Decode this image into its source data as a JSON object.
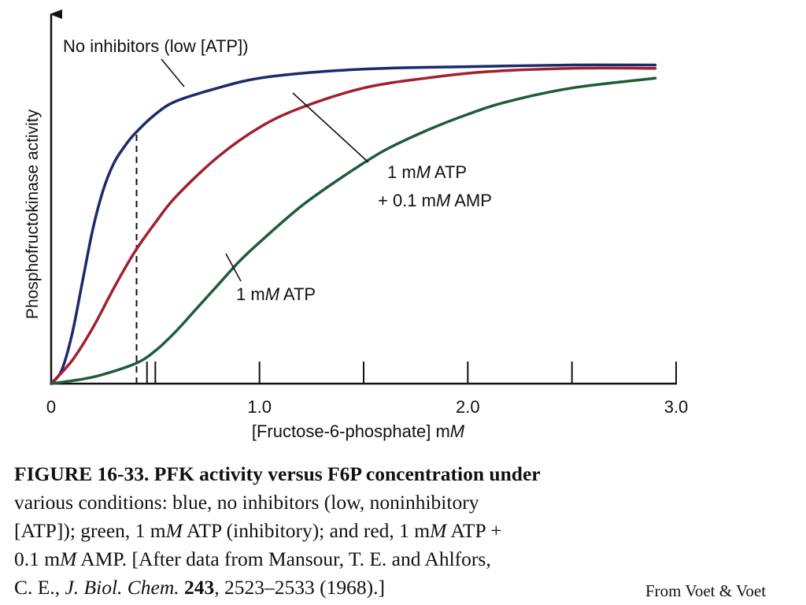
{
  "chart_data": {
    "type": "line",
    "xlabel": "[Fructose-6-phosphate] mM",
    "ylabel": "Phosphofructokinase activity",
    "xlim": [
      0,
      3.0
    ],
    "ylim": [
      0,
      1.0
    ],
    "x_tick_labels": [
      "0",
      "1.0",
      "2.0",
      "3.0"
    ],
    "x_major_ticks": [
      0.5,
      1.0,
      1.5,
      2.0,
      2.5,
      3.0
    ],
    "extra_tick": 0.46,
    "marker_line_x": 0.41,
    "series": [
      {
        "name": "No inhibitors (low [ATP])",
        "color": "#1b2a6b",
        "x": [
          0,
          0.05,
          0.1,
          0.15,
          0.2,
          0.25,
          0.3,
          0.35,
          0.4,
          0.5,
          0.6,
          0.8,
          1.0,
          1.3,
          1.6,
          2.0,
          2.5,
          2.9
        ],
        "y": [
          0.0,
          0.04,
          0.15,
          0.31,
          0.47,
          0.59,
          0.67,
          0.72,
          0.76,
          0.82,
          0.86,
          0.9,
          0.93,
          0.95,
          0.96,
          0.965,
          0.97,
          0.97
        ]
      },
      {
        "name": "1 mM ATP + 0.1 mM AMP",
        "color": "#a02030",
        "x": [
          0,
          0.1,
          0.2,
          0.3,
          0.4,
          0.5,
          0.6,
          0.8,
          1.0,
          1.2,
          1.5,
          1.8,
          2.1,
          2.5,
          2.9
        ],
        "y": [
          0.0,
          0.07,
          0.17,
          0.29,
          0.4,
          0.49,
          0.57,
          0.69,
          0.78,
          0.84,
          0.9,
          0.93,
          0.95,
          0.96,
          0.96
        ]
      },
      {
        "name": "1 mM ATP",
        "color": "#1f5c3a",
        "x": [
          0,
          0.2,
          0.4,
          0.5,
          0.6,
          0.7,
          0.8,
          0.9,
          1.0,
          1.2,
          1.4,
          1.6,
          1.8,
          2.0,
          2.2,
          2.5,
          2.9
        ],
        "y": [
          0.0,
          0.02,
          0.06,
          0.1,
          0.16,
          0.23,
          0.3,
          0.37,
          0.43,
          0.54,
          0.63,
          0.71,
          0.77,
          0.82,
          0.86,
          0.9,
          0.93
        ]
      }
    ],
    "annotations": {
      "blue": "No inhibitors (low [ATP])",
      "red_line1_a": "1 m",
      "red_line1_m": "M",
      "red_line1_b": " ATP",
      "red_line2_a": "+ 0.1 m",
      "red_line2_m": "M",
      "red_line2_b": " AMP",
      "green_a": "1 m",
      "green_m": "M",
      "green_b": " ATP"
    },
    "xlabel_parts": {
      "a": "[Fructose-6-phosphate] m",
      "m": "M"
    }
  },
  "caption": {
    "label": "FIGURE 16-33.",
    "title": "PFK activity versus F6P concentration under",
    "body_1": "various conditions: blue, no inhibitors (low, noninhibitory",
    "body_2a": "[ATP]); green, 1 m",
    "body_2m": "M",
    "body_2b": " ATP (inhibitory); and red, 1 m",
    "body_2m2": "M",
    "body_2c": " ATP +",
    "body_3a": "0.1 m",
    "body_3m": "M",
    "body_3b": " AMP. [After data from Mansour, T. E. and Ahlfors,",
    "body_4a": "C. E., ",
    "body_4journal": "J. Biol. Chem.",
    "body_4space": " ",
    "body_4volume": "243",
    "body_4b": ", 2523–2533 (1968).]"
  },
  "source_credit": "From Voet & Voet"
}
